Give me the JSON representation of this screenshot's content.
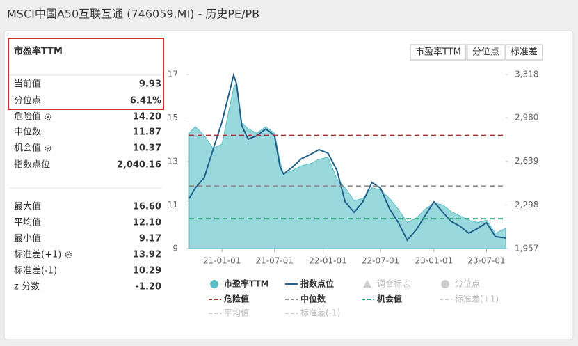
{
  "header": {
    "title": "MSCI中国A50互联互通 (746059.MI) - 历史PE/PB"
  },
  "panel": {
    "title": "市盈率TTM",
    "groups": [
      [
        {
          "label": "当前值",
          "value": "9.93"
        },
        {
          "label": "分位点",
          "value": "6.41%"
        },
        {
          "label": "危险值",
          "value": "14.20",
          "gear": true
        },
        {
          "label": "中位数",
          "value": "11.87"
        },
        {
          "label": "机会值",
          "value": "10.37",
          "gear": true
        },
        {
          "label": "指数点位",
          "value": "2,040.16"
        }
      ],
      [
        {
          "label": "最大值",
          "value": "16.60"
        },
        {
          "label": "平均值",
          "value": "12.10"
        },
        {
          "label": "最小值",
          "value": "9.17"
        },
        {
          "label": "标准差(+1)",
          "value": "13.92",
          "gear": true
        },
        {
          "label": "标准差(-1)",
          "value": "10.29"
        },
        {
          "label": "z 分数",
          "value": "-1.20"
        }
      ]
    ]
  },
  "buttons": [
    "市盈率TTM",
    "分位点",
    "标准差"
  ],
  "chart_data": {
    "type": "line",
    "x": [
      "20-09-10",
      "20-10-01",
      "20-11-01",
      "20-12-01",
      "21-01-01",
      "21-02-10",
      "21-02-20",
      "21-03-10",
      "21-04-01",
      "21-05-01",
      "21-06-01",
      "21-07-01",
      "21-07-20",
      "21-08-01",
      "21-09-01",
      "21-10-01",
      "21-11-01",
      "21-12-01",
      "22-01-01",
      "22-02-01",
      "22-03-01",
      "22-04-01",
      "22-05-01",
      "22-06-01",
      "22-07-01",
      "22-08-01",
      "22-09-01",
      "22-10-01",
      "22-11-01",
      "22-12-01",
      "23-01-01",
      "23-02-01",
      "23-03-01",
      "23-04-01",
      "23-05-01",
      "23-06-01",
      "23-07-01",
      "23-08-01",
      "23-09-05"
    ],
    "xlim": [
      "20-09-10",
      "23-09-05"
    ],
    "xticks": [
      "21-01-01",
      "21-07-01",
      "22-01-01",
      "22-07-01",
      "23-01-01",
      "23-07-01"
    ],
    "ylim": [
      9,
      17
    ],
    "yticks": [
      9,
      11,
      13,
      15,
      17
    ],
    "y2lim": [
      1957,
      3318
    ],
    "y2ticks": [
      {
        "value": 1957,
        "label": "1,957"
      },
      {
        "value": 2298,
        "label": "2,298"
      },
      {
        "value": 2639,
        "label": "2,639"
      },
      {
        "value": 2980,
        "label": "2,980"
      },
      {
        "value": 3318,
        "label": "3,318"
      }
    ],
    "series": [
      {
        "name": "市盈率TTM",
        "color": "#7fd0d6",
        "style": "area",
        "values": [
          14.3,
          14.6,
          14.2,
          13.6,
          13.8,
          16.4,
          16.6,
          14.8,
          14.5,
          14.3,
          14.6,
          14.3,
          13.0,
          12.4,
          12.6,
          12.8,
          12.9,
          13.1,
          13.2,
          12.2,
          11.8,
          11.2,
          11.3,
          11.8,
          11.7,
          11.3,
          10.8,
          10.2,
          10.4,
          10.8,
          11.1,
          11.0,
          10.7,
          10.5,
          10.3,
          10.2,
          10.3,
          9.7,
          9.93
        ]
      },
      {
        "name": "指数点位",
        "color": "#1f5f8b",
        "style": "line",
        "axis": "y2",
        "values": [
          2349,
          2430,
          2512,
          2730,
          2948,
          3313,
          3247,
          2920,
          2812,
          2839,
          2893,
          2839,
          2594,
          2540,
          2594,
          2659,
          2692,
          2730,
          2703,
          2567,
          2322,
          2240,
          2322,
          2474,
          2430,
          2267,
          2158,
          2022,
          2104,
          2213,
          2322,
          2240,
          2169,
          2131,
          2077,
          2115,
          2158,
          2050,
          2040
        ]
      }
    ],
    "reference_lines": [
      {
        "name": "危险值",
        "value": 14.2,
        "color": "#a83232"
      },
      {
        "name": "中位数",
        "value": 11.87,
        "color": "#8a8a8a"
      },
      {
        "name": "机会值",
        "value": 10.37,
        "color": "#1e9a6a"
      }
    ],
    "hidden_series": [
      {
        "name": "调合标志",
        "marker": "triangle"
      },
      {
        "name": "分位点",
        "marker": "circle"
      },
      {
        "name": "标准差(+1)",
        "marker": "dash"
      },
      {
        "name": "平均值",
        "marker": "dash"
      },
      {
        "name": "标准差(-1)",
        "marker": "dash"
      }
    ]
  }
}
